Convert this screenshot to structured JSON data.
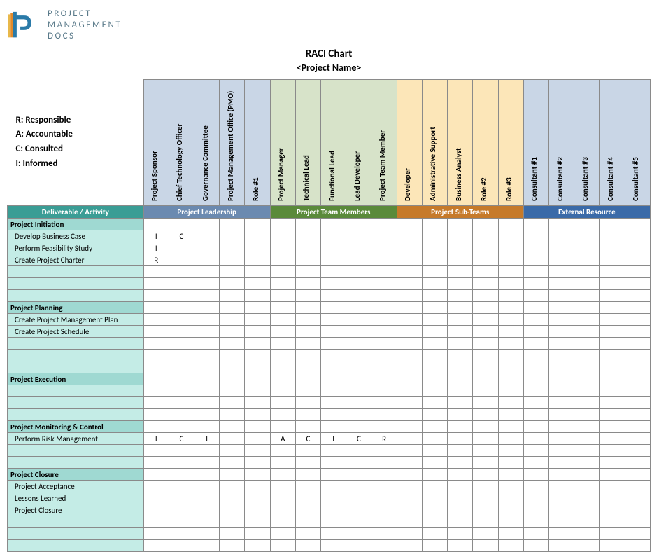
{
  "logo": {
    "line1": "PROJECT",
    "line2": "MANAGEMENT",
    "line3": "DOCS"
  },
  "title": "RACI Chart",
  "subtitle": "<Project Name>",
  "legend": {
    "r": "R: Responsible",
    "a": "A: Accountable",
    "c": "C: Consulted",
    "i": "I: Informed"
  },
  "colors": {
    "deliverable_header_bg": "#3a9d95",
    "deliverable_header_text": "#ffffff",
    "leadership_band_bg": "#c9d6e6",
    "leadership_header_bg": "#6b8ab0",
    "team_band_bg": "#d7e3c9",
    "team_header_bg": "#5a8a3a",
    "subteam_band_bg": "#fce6b8",
    "subteam_header_bg": "#c67a2a",
    "external_band_bg": "#c9d6e6",
    "external_header_bg": "#3a6aa8",
    "section_bg": "#9fd9d2",
    "activity_bg": "#c4ece6",
    "blank_bg": "#c4ece6"
  },
  "groups": [
    {
      "key": "leadership",
      "label": "Project Leadership",
      "band_color": "#c9d6e6",
      "header_color": "#6b8ab0",
      "roles": [
        "Project Sponsor",
        "Chief Technology Officer",
        "Governance Committee",
        "Project Management Office (PMO)",
        "Role #1"
      ]
    },
    {
      "key": "team",
      "label": "Project Team Members",
      "band_color": "#d7e3c9",
      "header_color": "#5a8a3a",
      "roles": [
        "Project Manager",
        "Technical Lead",
        "Functional Lead",
        "Lead Developer",
        "Project Team Member"
      ]
    },
    {
      "key": "subteam",
      "label": "Project Sub-Teams",
      "band_color": "#fce6b8",
      "header_color": "#c67a2a",
      "roles": [
        "Developer",
        "Administrative Support",
        "Business Analyst",
        "Role #2",
        "Role #3"
      ]
    },
    {
      "key": "external",
      "label": "External Resource",
      "band_color": "#c9d6e6",
      "header_color": "#3a6aa8",
      "roles": [
        "Consultant #1",
        "Consultant #2",
        "Consultant #3",
        "Consultant #4",
        "Consultant #5"
      ]
    }
  ],
  "deliverable_header": "Deliverable / Activity",
  "rows": [
    {
      "type": "section",
      "label": "Project Initiation"
    },
    {
      "type": "activity",
      "label": "Develop Business Case",
      "values": [
        "I",
        "C",
        "",
        "",
        "",
        "",
        "",
        "",
        "",
        "",
        "",
        "",
        "",
        "",
        "",
        "",
        "",
        "",
        "",
        ""
      ]
    },
    {
      "type": "activity",
      "label": "Perform Feasibility Study",
      "values": [
        "I",
        "",
        "",
        "",
        "",
        "",
        "",
        "",
        "",
        "",
        "",
        "",
        "",
        "",
        "",
        "",
        "",
        "",
        "",
        ""
      ]
    },
    {
      "type": "activity",
      "label": "Create Project Charter",
      "values": [
        "R",
        "",
        "",
        "",
        "",
        "",
        "",
        "",
        "",
        "",
        "",
        "",
        "",
        "",
        "",
        "",
        "",
        "",
        "",
        ""
      ]
    },
    {
      "type": "blank"
    },
    {
      "type": "blank"
    },
    {
      "type": "blank"
    },
    {
      "type": "section",
      "label": "Project Planning"
    },
    {
      "type": "activity",
      "label": "Create Project Management Plan",
      "values": [
        "",
        "",
        "",
        "",
        "",
        "",
        "",
        "",
        "",
        "",
        "",
        "",
        "",
        "",
        "",
        "",
        "",
        "",
        "",
        ""
      ]
    },
    {
      "type": "activity",
      "label": "Create Project Schedule",
      "values": [
        "",
        "",
        "",
        "",
        "",
        "",
        "",
        "",
        "",
        "",
        "",
        "",
        "",
        "",
        "",
        "",
        "",
        "",
        "",
        ""
      ]
    },
    {
      "type": "blank"
    },
    {
      "type": "blank"
    },
    {
      "type": "blank"
    },
    {
      "type": "section",
      "label": "Project Execution"
    },
    {
      "type": "blank"
    },
    {
      "type": "blank"
    },
    {
      "type": "blank"
    },
    {
      "type": "section",
      "label": "Project Monitoring & Control"
    },
    {
      "type": "activity",
      "label": "Perform Risk Management",
      "values": [
        "I",
        "C",
        "I",
        "",
        "",
        "A",
        "C",
        "I",
        "C",
        "R",
        "",
        "",
        "",
        "",
        "",
        "",
        "",
        "",
        "",
        ""
      ]
    },
    {
      "type": "blank"
    },
    {
      "type": "blank"
    },
    {
      "type": "section",
      "label": "Project Closure"
    },
    {
      "type": "activity",
      "label": "Project Acceptance",
      "values": [
        "",
        "",
        "",
        "",
        "",
        "",
        "",
        "",
        "",
        "",
        "",
        "",
        "",
        "",
        "",
        "",
        "",
        "",
        "",
        ""
      ]
    },
    {
      "type": "activity",
      "label": "Lessons Learned",
      "values": [
        "",
        "",
        "",
        "",
        "",
        "",
        "",
        "",
        "",
        "",
        "",
        "",
        "",
        "",
        "",
        "",
        "",
        "",
        "",
        ""
      ]
    },
    {
      "type": "activity",
      "label": "Project Closure",
      "values": [
        "",
        "",
        "",
        "",
        "",
        "",
        "",
        "",
        "",
        "",
        "",
        "",
        "",
        "",
        "",
        "",
        "",
        "",
        "",
        ""
      ]
    },
    {
      "type": "blank"
    },
    {
      "type": "blank"
    },
    {
      "type": "blank"
    }
  ]
}
